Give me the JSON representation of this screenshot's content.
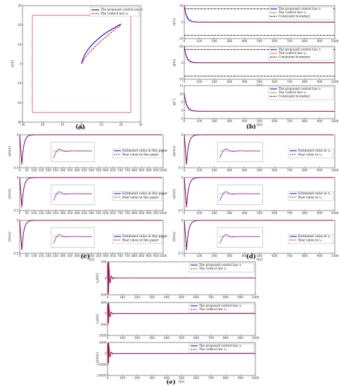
{
  "panel_labels": {
    "a": "(a)",
    "b": "(b)",
    "c": "(c)",
    "d": "(d)",
    "e": "(e)"
  },
  "colors": {
    "proposed": "#0000dd",
    "compared": "#e00000",
    "constraint": "#000000",
    "boundary_box": "#d03030",
    "inset": "#888888"
  },
  "chart_data": [
    {
      "id": "a",
      "type": "line",
      "xlabel": "y[m]",
      "ylabel": "x[m]",
      "xlim": [
        -30,
        30
      ],
      "ylim": [
        -30,
        30
      ],
      "xticks": [
        -30,
        -20,
        -10,
        0,
        10,
        20,
        30
      ],
      "yticks": [
        -30,
        -20,
        -10,
        0,
        10,
        20,
        30
      ],
      "boundary_box": {
        "x": [
          -25,
          25
        ],
        "y": [
          -25,
          25
        ]
      },
      "legend_position": "top-right",
      "series": [
        {
          "name": "The proposed control law τᵢ",
          "style": "solid",
          "x": [
            0,
            0.5,
            1.5,
            3,
            5,
            8,
            11,
            14,
            17,
            20
          ],
          "y": [
            0,
            2,
            4.5,
            7,
            9.5,
            12.5,
            15,
            17,
            18.8,
            20.5
          ]
        },
        {
          "name": "The control law τₐ",
          "style": "dashed",
          "x": [
            0,
            0.8,
            2,
            4,
            6.5,
            9.5,
            12.5,
            15.5,
            18,
            20
          ],
          "y": [
            0,
            1.5,
            3.5,
            6,
            8.5,
            11.5,
            14,
            16.5,
            18.5,
            20
          ]
        }
      ]
    },
    {
      "id": "b1",
      "type": "line",
      "ylabel": "x[m]",
      "xlabel": "",
      "xlim": [
        0,
        1000
      ],
      "ylim": [
        -20,
        20
      ],
      "yticks": [
        -20,
        0,
        20
      ],
      "xticks": [
        0,
        100,
        200,
        300,
        400,
        500,
        600,
        700,
        800,
        900,
        1000
      ],
      "constraints": [
        16,
        -16
      ],
      "legend_position": "top-right",
      "series": [
        {
          "name": "The proposed control law τᵢ",
          "style": "solid",
          "start": 20,
          "end": 0,
          "tau": 15
        },
        {
          "name": "The control law τₐ",
          "style": "dashed",
          "start": 20,
          "end": 0,
          "tau": 18
        },
        {
          "name": "Constraint boundary",
          "style": "dashdot"
        }
      ]
    },
    {
      "id": "b2",
      "type": "line",
      "ylabel": "y[m]",
      "xlabel": "t[s]",
      "xlim": [
        0,
        1000
      ],
      "ylim": [
        -20,
        20
      ],
      "yticks": [
        -20,
        0,
        20
      ],
      "xticks": [
        0,
        100,
        200,
        300,
        400,
        500,
        600,
        700,
        800,
        900,
        1000
      ],
      "constraints": [
        16,
        -16
      ],
      "legend_position": "top-right",
      "series": [
        {
          "name": "The proposed control law τᵢ",
          "style": "solid",
          "start": 20,
          "end": 0,
          "tau": 15
        },
        {
          "name": "The control law τₐ",
          "style": "dashed",
          "start": 20,
          "end": 0,
          "tau": 18
        },
        {
          "name": "Constraint boundary",
          "style": "dashdot"
        }
      ]
    },
    {
      "id": "b3",
      "type": "line",
      "ylabel": "ψ[°]",
      "xlabel": "t[s]",
      "xlim": [
        0,
        1000
      ],
      "ylim": [
        -5,
        15
      ],
      "yticks": [
        -5,
        0,
        5,
        10,
        15
      ],
      "xticks": [
        0,
        100,
        200,
        300,
        400,
        500,
        600,
        700,
        800,
        900,
        1000
      ],
      "legend_position": "top-right",
      "series": [
        {
          "name": "The proposed control law τᵢ",
          "style": "solid",
          "start": 10,
          "end": -0.5,
          "tau": 15
        },
        {
          "name": "The control law τₐ",
          "style": "dashed",
          "start": 10,
          "end": -0.5,
          "tau": 18
        },
        {
          "name": "Constraint boundary",
          "style": "dashdot"
        }
      ]
    },
    {
      "id": "c1",
      "type": "line",
      "ylabel": "u[m/s]",
      "xlabel": "",
      "xlim": [
        0,
        1000
      ],
      "ylim": [
        -0.5,
        0
      ],
      "yticks": [
        -0.5,
        0
      ],
      "xticks": [
        0,
        50,
        100,
        150,
        200,
        250,
        300,
        350,
        400,
        450,
        500,
        550,
        600,
        650,
        700,
        750,
        800,
        850,
        900,
        950,
        1000
      ],
      "legend_position": "center-right",
      "series": [
        {
          "name": "Estimated value in this paper",
          "style": "solid",
          "dip": -0.45,
          "dip_t": 15,
          "tau": 14,
          "end": 0
        },
        {
          "name": "Real value in this paper",
          "style": "dashed",
          "dip": -0.45,
          "dip_t": 15,
          "tau": 14,
          "end": 0
        }
      ]
    },
    {
      "id": "c2",
      "type": "line",
      "ylabel": "v[m/s]",
      "xlabel": "",
      "xlim": [
        0,
        1000
      ],
      "ylim": [
        -0.5,
        0
      ],
      "yticks": [
        -0.5,
        0
      ],
      "xticks": [
        0,
        50,
        100,
        150,
        200,
        250,
        300,
        350,
        400,
        450,
        500,
        550,
        600,
        650,
        700,
        750,
        800,
        850,
        900,
        950,
        1000
      ],
      "legend_position": "center-right",
      "series": [
        {
          "name": "Estimated value in this paper",
          "style": "solid",
          "dip": -0.45,
          "dip_t": 15,
          "tau": 14,
          "end": 0
        },
        {
          "name": "Real value in this paper",
          "style": "dashed",
          "dip": -0.45,
          "dip_t": 15,
          "tau": 14,
          "end": 0
        }
      ]
    },
    {
      "id": "c3",
      "type": "line",
      "ylabel": "r[m/s]",
      "xlabel": "t[s]",
      "xlim": [
        0,
        1000
      ],
      "ylim": [
        -0.5,
        0
      ],
      "yticks": [
        -0.5,
        0
      ],
      "xticks": [
        0,
        50,
        100,
        150,
        200,
        250,
        300,
        350,
        400,
        450,
        500,
        550,
        600,
        650,
        700,
        750,
        800,
        850,
        900,
        950,
        1000
      ],
      "legend_position": "center-right",
      "series": [
        {
          "name": "Estimated value in this paper",
          "style": "solid",
          "dip": -0.45,
          "dip_t": 15,
          "tau": 14,
          "end": 0
        },
        {
          "name": "Real value in this paper",
          "style": "dashed",
          "dip": -0.45,
          "dip_t": 15,
          "tau": 14,
          "end": 0
        }
      ]
    },
    {
      "id": "d1",
      "type": "line",
      "ylabel": "u[m/s]",
      "xlabel": "",
      "xlim": [
        0,
        1000
      ],
      "ylim": [
        -0.5,
        0
      ],
      "yticks": [
        -0.5,
        0
      ],
      "xticks": [
        0,
        100,
        200,
        300,
        400,
        500,
        600,
        700,
        800,
        900,
        1000
      ],
      "legend_position": "center-right",
      "series": [
        {
          "name": "Estimated value in τₐ",
          "style": "solid",
          "dip": -0.45,
          "dip_t": 15,
          "tau": 14,
          "end": 0
        },
        {
          "name": "Real value in τₐ",
          "style": "dashed",
          "dip": -0.45,
          "dip_t": 15,
          "tau": 14,
          "end": 0
        }
      ]
    },
    {
      "id": "d2",
      "type": "line",
      "ylabel": "v[m/s]",
      "xlabel": "",
      "xlim": [
        0,
        1000
      ],
      "ylim": [
        -0.5,
        0
      ],
      "yticks": [
        -0.5,
        0
      ],
      "xticks": [
        0,
        100,
        200,
        300,
        400,
        500,
        600,
        700,
        800,
        900,
        1000
      ],
      "legend_position": "center-right",
      "series": [
        {
          "name": "Estimated value in τₐ",
          "style": "solid",
          "dip": -0.45,
          "dip_t": 15,
          "tau": 14,
          "end": 0
        },
        {
          "name": "Real value in τₐ",
          "style": "dashed",
          "dip": -0.45,
          "dip_t": 15,
          "tau": 14,
          "end": 0
        }
      ]
    },
    {
      "id": "d3",
      "type": "line",
      "ylabel": "r[m/s]",
      "xlabel": "t[s]",
      "xlim": [
        0,
        1000
      ],
      "ylim": [
        -0.5,
        0
      ],
      "yticks": [
        -0.5,
        0
      ],
      "xticks": [
        0,
        100,
        200,
        300,
        400,
        500,
        600,
        700,
        800,
        900,
        1000
      ],
      "legend_position": "center-right",
      "series": [
        {
          "name": "Estimated value in τₐ",
          "style": "solid",
          "dip": -0.45,
          "dip_t": 15,
          "tau": 14,
          "end": 0
        },
        {
          "name": "Real value in τₐ",
          "style": "dashed",
          "dip": -0.45,
          "dip_t": 15,
          "tau": 14,
          "end": 0
        }
      ]
    },
    {
      "id": "e1",
      "type": "line",
      "ylabel": "τᵤ[kN]",
      "xlabel": "",
      "xlim": [
        0,
        1000
      ],
      "ylim": [
        -500,
        500
      ],
      "yticks": [
        -500,
        0,
        500
      ],
      "xticks": [
        0,
        100,
        200,
        300,
        400,
        500,
        600,
        700,
        800,
        900,
        1000
      ],
      "legend_position": "top-right",
      "series": [
        {
          "name": "The proposed control law τᵢ",
          "style": "solid",
          "spike": 450,
          "settle": 10
        },
        {
          "name": "The control law τₐ",
          "style": "dashed",
          "spike": 500,
          "settle": 10
        }
      ]
    },
    {
      "id": "e2",
      "type": "line",
      "ylabel": "τᵥ[kN]",
      "xlabel": "",
      "xlim": [
        0,
        1000
      ],
      "ylim": [
        -1000,
        500
      ],
      "yticks": [
        -1000,
        -500,
        0,
        500
      ],
      "xticks": [
        0,
        100,
        200,
        300,
        400,
        500,
        600,
        700,
        800,
        900,
        1000
      ],
      "legend_position": "top-right",
      "series": [
        {
          "name": "The proposed control law τᵢ",
          "style": "solid",
          "spike": 450,
          "settle": 0
        },
        {
          "name": "The control law τₐ",
          "style": "dashed",
          "spike": 480,
          "settle": 0
        }
      ]
    },
    {
      "id": "e3",
      "type": "line",
      "ylabel": "τᵣ[kNm]",
      "xlabel": "t[s]",
      "xlim": [
        0,
        1000
      ],
      "ylim": [
        -10000,
        5000
      ],
      "yticks": [
        -10000,
        -5000,
        0,
        5000
      ],
      "xticks": [
        0,
        100,
        200,
        300,
        400,
        500,
        600,
        700,
        800,
        900,
        1000
      ],
      "legend_position": "top-right",
      "series": [
        {
          "name": "The proposed control law τᵢ",
          "style": "solid",
          "spike": 4500,
          "settle": 0
        },
        {
          "name": "The control law τₐ",
          "style": "dashed",
          "spike": 4800,
          "settle": 0
        }
      ]
    }
  ]
}
